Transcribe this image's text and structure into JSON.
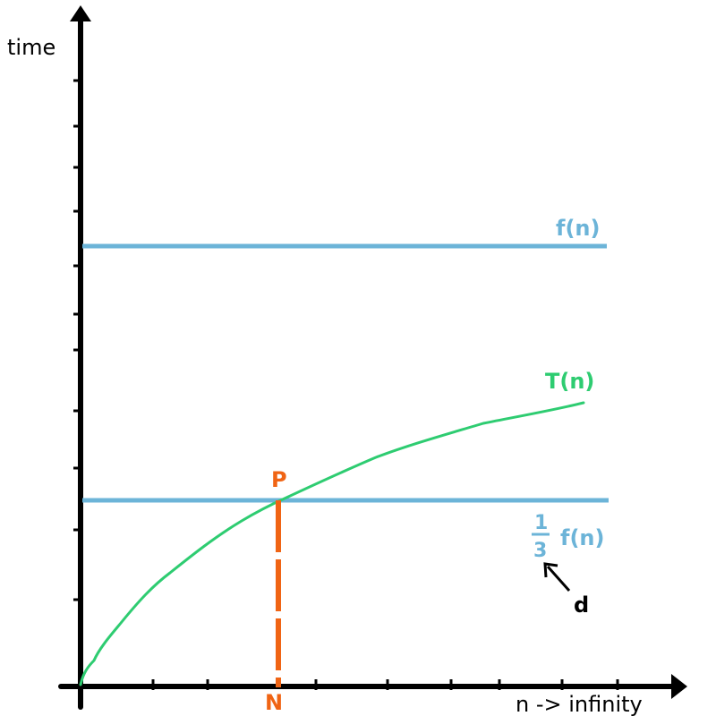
{
  "labels": {
    "y_axis": "time",
    "x_axis": "n -> infinity",
    "f": "f(n)",
    "T": "T(n)",
    "third_numerator": "1",
    "third_denominator": "3",
    "third_f": "f(n)",
    "P": "P",
    "N": "N",
    "d": "d"
  },
  "colors": {
    "axis": "#000000",
    "f_line": "#6cb4d8",
    "T_curve": "#2ecc71",
    "marker": "#f06414",
    "arrow": "#000000"
  }
}
